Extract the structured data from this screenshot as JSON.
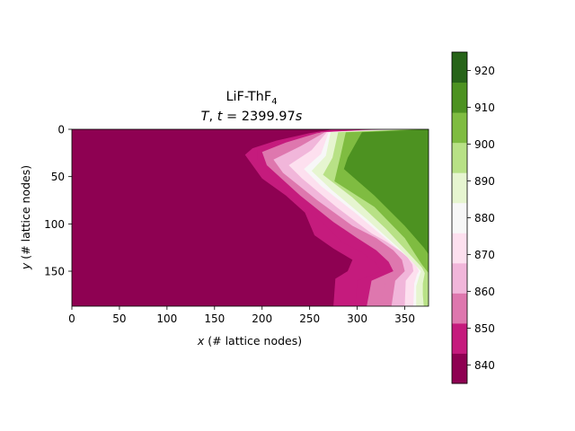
{
  "chart_data": {
    "type": "heatmap",
    "title_line1": "LiF-ThF",
    "title_line1_sub": "4",
    "title_line2_var": "T",
    "title_line2_sep": ", ",
    "title_line2_t": "t",
    "title_line2_eq": " = 2399.97",
    "title_line2_unit": "s",
    "xlabel_var": "x",
    "xlabel_rest": " (# lattice nodes)",
    "ylabel_var": "y",
    "ylabel_rest": " (# lattice nodes)",
    "xlim": [
      0,
      375
    ],
    "ylim": [
      187,
      0
    ],
    "x_ticks": [
      0,
      50,
      100,
      150,
      200,
      250,
      300,
      350
    ],
    "y_ticks": [
      0,
      50,
      100,
      150
    ],
    "colorbar": {
      "levels": [
        835,
        840,
        845,
        850,
        855,
        860,
        865,
        870,
        875,
        880,
        885,
        890,
        895,
        900,
        905,
        910,
        915,
        920,
        925
      ],
      "ticks": [
        840,
        850,
        860,
        870,
        880,
        890,
        900,
        910,
        920
      ],
      "colors": [
        "#8e0152",
        "#c51b7d",
        "#de77ae",
        "#f1b6da",
        "#fde0ef",
        "#f7f7f7",
        "#e6f5d0",
        "#b8e186",
        "#7fbc41",
        "#4d9221",
        "#276419"
      ]
    },
    "contours": [
      {
        "temperature": 847,
        "points": [
          [
            275,
            0
          ],
          [
            250,
            4
          ],
          [
            215,
            12
          ],
          [
            190,
            20
          ],
          [
            182,
            27
          ],
          [
            200,
            52
          ],
          [
            225,
            70
          ],
          [
            245,
            88
          ],
          [
            255,
            112
          ],
          [
            275,
            126
          ],
          [
            295,
            138
          ],
          [
            290,
            150
          ],
          [
            277,
            158
          ],
          [
            275,
            187
          ]
        ]
      },
      {
        "temperature": 851,
        "points": [
          [
            300,
            0
          ],
          [
            255,
            4
          ],
          [
            220,
            12
          ],
          [
            195,
            22
          ],
          [
            195,
            32
          ],
          [
            230,
            70
          ],
          [
            265,
            100
          ],
          [
            285,
            120
          ],
          [
            305,
            130
          ],
          [
            320,
            142
          ],
          [
            325,
            150
          ],
          [
            300,
            160
          ],
          [
            298,
            187
          ]
        ]
      },
      {
        "temperature": 855,
        "points": [
          [
            315,
            0
          ],
          [
            258,
            4
          ],
          [
            225,
            14
          ],
          [
            200,
            24
          ],
          [
            205,
            38
          ],
          [
            240,
            70
          ],
          [
            275,
            98
          ],
          [
            300,
            115
          ],
          [
            320,
            128
          ],
          [
            333,
            140
          ],
          [
            338,
            150
          ],
          [
            315,
            160
          ],
          [
            310,
            187
          ]
        ]
      },
      {
        "temperature": 859,
        "points": [
          [
            320,
            0
          ],
          [
            262,
            3
          ],
          [
            232,
            16
          ],
          [
            205,
            28
          ],
          [
            213,
            42
          ],
          [
            250,
            72
          ],
          [
            285,
            98
          ],
          [
            310,
            112
          ],
          [
            330,
            125
          ],
          [
            340,
            135
          ],
          [
            345,
            150
          ],
          [
            330,
            160
          ],
          [
            324,
            187
          ]
        ]
      },
      {
        "temperature": 863,
        "points": [
          [
            325,
            0
          ],
          [
            266,
            3
          ],
          [
            240,
            18
          ],
          [
            212,
            32
          ],
          [
            222,
            46
          ],
          [
            258,
            75
          ],
          [
            295,
            102
          ],
          [
            320,
            115
          ],
          [
            338,
            128
          ],
          [
            347,
            138
          ],
          [
            350,
            150
          ],
          [
            340,
            160
          ],
          [
            336,
            187
          ]
        ]
      },
      {
        "temperature": 867,
        "points": [
          [
            330,
            0
          ],
          [
            268,
            3
          ],
          [
            247,
            20
          ],
          [
            220,
            34
          ],
          [
            232,
            48
          ],
          [
            268,
            78
          ],
          [
            305,
            105
          ],
          [
            330,
            118
          ],
          [
            346,
            130
          ],
          [
            353,
            140
          ],
          [
            355,
            150
          ],
          [
            347,
            160
          ],
          [
            343,
            187
          ]
        ]
      },
      {
        "temperature": 872,
        "points": [
          [
            335,
            0
          ],
          [
            268,
            3
          ],
          [
            252,
            22
          ],
          [
            228,
            38
          ],
          [
            242,
            52
          ],
          [
            278,
            82
          ],
          [
            315,
            110
          ],
          [
            340,
            124
          ],
          [
            352,
            134
          ],
          [
            358,
            143
          ],
          [
            359,
            150
          ],
          [
            351,
            160
          ],
          [
            350,
            187
          ]
        ]
      },
      {
        "temperature": 877,
        "points": [
          [
            340,
            0
          ],
          [
            268,
            3
          ],
          [
            257,
            24
          ],
          [
            236,
            40
          ],
          [
            252,
            56
          ],
          [
            290,
            86
          ],
          [
            325,
            115
          ],
          [
            347,
            130
          ],
          [
            358,
            140
          ],
          [
            363,
            146
          ],
          [
            362,
            150
          ],
          [
            356,
            162
          ],
          [
            355,
            187
          ]
        ]
      },
      {
        "temperature": 882,
        "points": [
          [
            345,
            0
          ],
          [
            270,
            3
          ],
          [
            262,
            26
          ],
          [
            244,
            42
          ],
          [
            262,
            60
          ],
          [
            300,
            90
          ],
          [
            335,
            120
          ],
          [
            354,
            136
          ],
          [
            362,
            144
          ],
          [
            365,
            150
          ],
          [
            363,
            153
          ],
          [
            360,
            163
          ],
          [
            359,
            187
          ]
        ]
      },
      {
        "temperature": 887,
        "points": [
          [
            350,
            0
          ],
          [
            272,
            3
          ],
          [
            267,
            28
          ],
          [
            252,
            44
          ],
          [
            273,
            64
          ],
          [
            310,
            95
          ],
          [
            343,
            125
          ],
          [
            358,
            140
          ],
          [
            367,
            150
          ],
          [
            365,
            156
          ],
          [
            362,
            166
          ],
          [
            362,
            187
          ]
        ]
      },
      {
        "temperature": 892,
        "points": [
          [
            355,
            0
          ],
          [
            275,
            3
          ],
          [
            270,
            30
          ],
          [
            258,
            46
          ],
          [
            283,
            68
          ],
          [
            320,
            100
          ],
          [
            350,
            130
          ],
          [
            363,
            143
          ],
          [
            369,
            150
          ],
          [
            367,
            159
          ],
          [
            365,
            170
          ],
          [
            366,
            187
          ]
        ]
      },
      {
        "temperature": 897,
        "points": [
          [
            360,
            0
          ],
          [
            280,
            3
          ],
          [
            274,
            30
          ],
          [
            264,
            48
          ],
          [
            295,
            72
          ],
          [
            330,
            105
          ],
          [
            357,
            134
          ],
          [
            368,
            146
          ],
          [
            371,
            152
          ],
          [
            369,
            163
          ],
          [
            369,
            175
          ],
          [
            370,
            187
          ]
        ]
      },
      {
        "temperature": 902,
        "points": [
          [
            365,
            0
          ],
          [
            284,
            3
          ],
          [
            278,
            30
          ],
          [
            270,
            52
          ],
          [
            306,
            78
          ],
          [
            340,
            110
          ],
          [
            363,
            140
          ],
          [
            373,
            152
          ],
          [
            372,
            165
          ],
          [
            373,
            187
          ]
        ]
      },
      {
        "temperature": 907,
        "points": [
          [
            370,
            0
          ],
          [
            288,
            3
          ],
          [
            282,
            30
          ],
          [
            276,
            55
          ],
          [
            318,
            82
          ],
          [
            350,
            115
          ],
          [
            368,
            143
          ],
          [
            375,
            152
          ],
          [
            375,
            187
          ]
        ]
      },
      {
        "temperature": 912,
        "points": [
          [
            375,
            0
          ],
          [
            305,
            3
          ],
          [
            290,
            30
          ],
          [
            286,
            42
          ],
          [
            318,
            70
          ],
          [
            350,
            102
          ],
          [
            370,
            125
          ],
          [
            375,
            132
          ],
          [
            375,
            187
          ]
        ]
      }
    ]
  }
}
